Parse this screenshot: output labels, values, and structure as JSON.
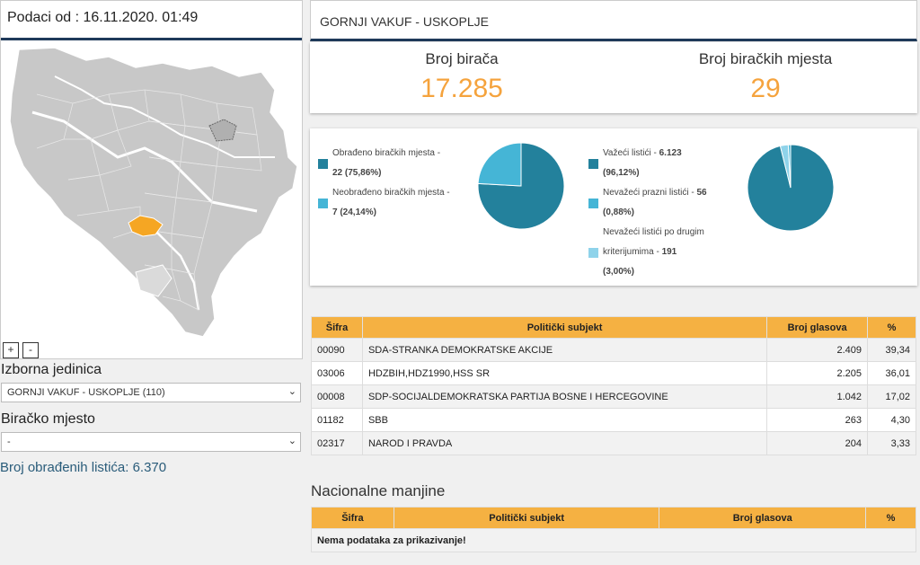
{
  "left": {
    "data_from": "Podaci od : 16.11.2020. 01:49",
    "zoom_in": "+",
    "zoom_out": "-",
    "electoral_unit_label": "Izborna jedinica",
    "electoral_unit_value": "GORNJI VAKUF - USKOPLJE (110)",
    "polling_station_label": "Biračko mjesto",
    "polling_station_value": "-",
    "processed_ballots": "Broj obrađenih listića: 6.370"
  },
  "header": {
    "title": "GORNJI VAKUF - USKOPLJE"
  },
  "stats": {
    "voters_label": "Broj birača",
    "voters_value": "17.285",
    "stations_label": "Broj biračkih mjesta",
    "stations_value": "29"
  },
  "pie_stations": {
    "items": [
      {
        "label": "Obrađeno biračkih mjesta - ",
        "value": "22 (75,86%)",
        "color": "#23819c",
        "fraction": 0.7586
      },
      {
        "label": "Neobrađeno biračkih mjesta - ",
        "value": "7 (24,14%)",
        "color": "#45b5d6",
        "fraction": 0.2414
      }
    ]
  },
  "pie_ballots": {
    "items": [
      {
        "label": "Važeći listići - ",
        "value": "6.123",
        "pct": "(96,12%)",
        "color": "#23819c",
        "fraction": 0.9612
      },
      {
        "label": "Nevažeći prazni listići - ",
        "value": "56",
        "pct": "(0,88%)",
        "color": "#45b5d6",
        "fraction": 0.0088
      },
      {
        "label": "Nevažeći listići po drugim",
        "label2": "kriterijumima - ",
        "value": "191",
        "pct": "(3,00%)",
        "color": "#8fd3ea",
        "fraction": 0.03
      }
    ]
  },
  "results": {
    "headers": [
      "Šifra",
      "Politički subjekt",
      "Broj glasova",
      "%"
    ],
    "rows": [
      [
        "00090",
        "SDA-STRANKA DEMOKRATSKE AKCIJE",
        "2.409",
        "39,34"
      ],
      [
        "03006",
        "HDZBIH,HDZ1990,HSS SR",
        "2.205",
        "36,01"
      ],
      [
        "00008",
        "SDP-SOCIJALDEMOKRATSKA PARTIJA BOSNE I HERCEGOVINE",
        "1.042",
        "17,02"
      ],
      [
        "01182",
        "SBB",
        "263",
        "4,30"
      ],
      [
        "02317",
        "NAROD I PRAVDA",
        "204",
        "3,33"
      ]
    ]
  },
  "minorities": {
    "title": "Nacionalne manjine",
    "headers": [
      "Šifra",
      "Politički subjekt",
      "Broj glasova",
      "%"
    ],
    "empty_message": "Nema podataka za prikazivanje!"
  },
  "colors": {
    "accent": "#f5a33d",
    "header_line": "#1f3a5a",
    "table_header": "#f5b142",
    "map_highlight": "#f5a623",
    "map_fill": "#c8c8c8"
  }
}
